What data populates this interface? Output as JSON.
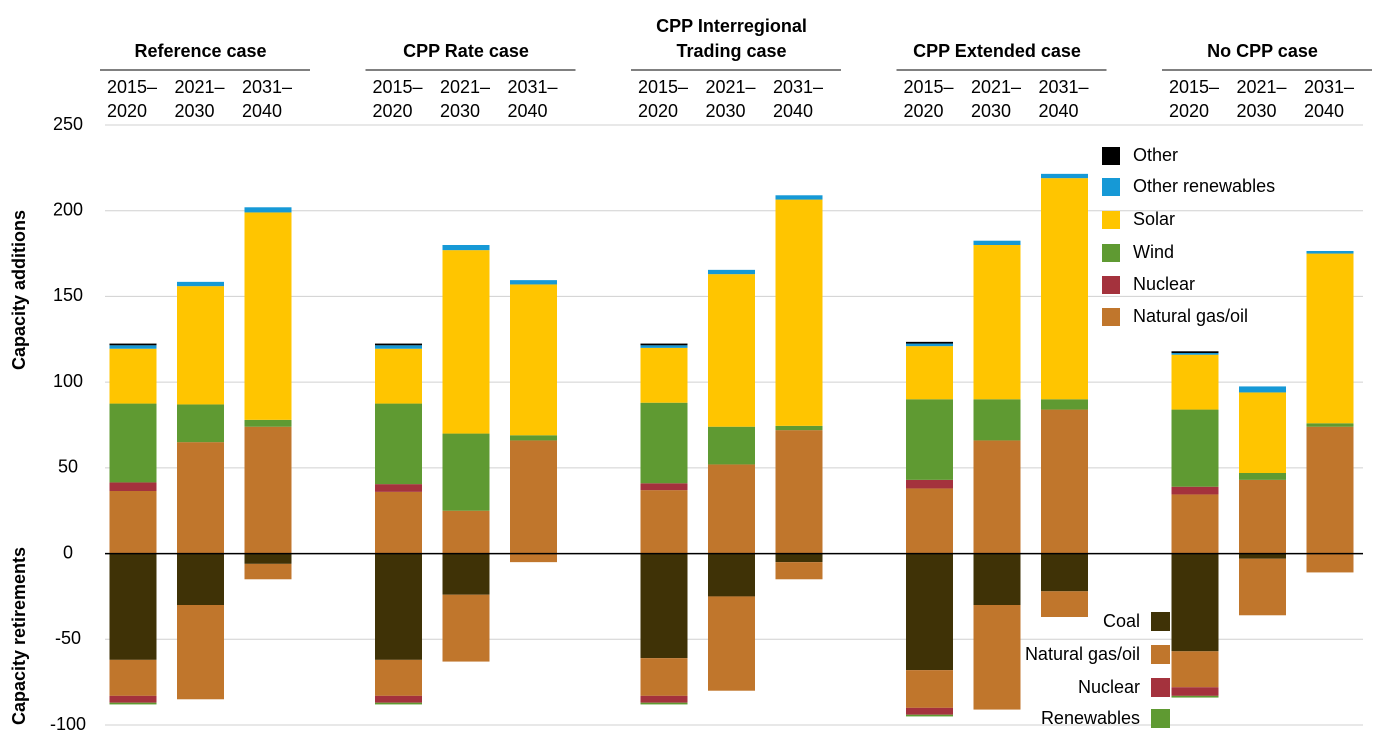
{
  "chart_data": {
    "type": "stacked_bar",
    "y_label_top": "Capacity additions",
    "y_label_bottom": "Capacity retirements",
    "ylim": [
      -100,
      250
    ],
    "yticks": [
      -100,
      -50,
      0,
      50,
      100,
      150,
      200,
      250
    ],
    "grid": true,
    "groups": [
      {
        "name": [
          "Reference case"
        ],
        "periods": [
          [
            "2015–",
            "2020"
          ],
          [
            "2021–",
            "2030"
          ],
          [
            "2031–",
            "2040"
          ]
        ]
      },
      {
        "name": [
          "CPP Rate case"
        ],
        "periods": [
          [
            "2015–",
            "2020"
          ],
          [
            "2021–",
            "2030"
          ],
          [
            "2031–",
            "2040"
          ]
        ]
      },
      {
        "name": [
          "CPP Interregional",
          "Trading case"
        ],
        "periods": [
          [
            "2015–",
            "2020"
          ],
          [
            "2021–",
            "2030"
          ],
          [
            "2031–",
            "2040"
          ]
        ]
      },
      {
        "name": [
          "CPP Extended case"
        ],
        "periods": [
          [
            "2015–",
            "2020"
          ],
          [
            "2021–",
            "2030"
          ],
          [
            "2031–",
            "2040"
          ]
        ]
      },
      {
        "name": [
          "No CPP case"
        ],
        "periods": [
          [
            "2015–",
            "2020"
          ],
          [
            "2021–",
            "2030"
          ],
          [
            "2031–",
            "2040"
          ]
        ]
      }
    ],
    "series": [
      {
        "name": "Natural gas/oil",
        "color": "#c0762c",
        "values": [
          36.5,
          65,
          74,
          36,
          25,
          66,
          37,
          52,
          72,
          38,
          66,
          84,
          34.5,
          43,
          74
        ]
      },
      {
        "name": "Nuclear",
        "color": "#a4323d",
        "values": [
          5,
          0,
          0,
          4.5,
          0,
          0,
          4,
          0,
          0,
          5,
          0,
          0,
          4.5,
          0,
          0
        ]
      },
      {
        "name": "Wind",
        "color": "#5f9a32",
        "values": [
          46,
          22,
          4,
          47,
          45,
          3,
          47,
          22,
          2.5,
          47,
          24,
          6,
          45,
          4,
          2
        ]
      },
      {
        "name": "Solar",
        "color": "#ffc500",
        "values": [
          32,
          69,
          121,
          32,
          107,
          88,
          32,
          89,
          132,
          31,
          90,
          129,
          32,
          47,
          99
        ]
      },
      {
        "name": "Other renewables",
        "color": "#1699d6",
        "values": [
          2,
          2.5,
          3,
          2,
          3,
          2.5,
          1.5,
          2.5,
          2.5,
          1.5,
          2.5,
          2.5,
          1,
          3.5,
          1.5
        ]
      },
      {
        "name": "Other",
        "color": "#000000",
        "values": [
          1,
          0,
          0,
          1,
          0,
          0,
          1,
          0,
          0,
          1,
          0,
          0,
          1,
          0,
          0
        ]
      }
    ],
    "retirement_series": [
      {
        "name": "Coal",
        "color": "#3f3206",
        "values": [
          -62,
          -30,
          -6,
          -62,
          -24,
          0,
          -61,
          -25,
          -5,
          -68,
          -30,
          -22,
          -57,
          -3,
          0
        ]
      },
      {
        "name": "Natural gas/oil",
        "color": "#c0762c",
        "values": [
          -21,
          -55,
          -9,
          -21,
          -39,
          -5,
          -22,
          -55,
          -10,
          -22,
          -61,
          -15,
          -21,
          -33,
          -11
        ]
      },
      {
        "name": "Nuclear",
        "color": "#a4323d",
        "values": [
          -4,
          0,
          0,
          -4,
          0,
          0,
          -4,
          0,
          0,
          -4,
          0,
          0,
          -5,
          0,
          0
        ]
      },
      {
        "name": "Renewables",
        "color": "#5f9a32",
        "values": [
          -1,
          0,
          0,
          -1,
          0,
          0,
          -1,
          0,
          0,
          -1,
          0,
          0,
          -1,
          0,
          0
        ]
      }
    ]
  }
}
